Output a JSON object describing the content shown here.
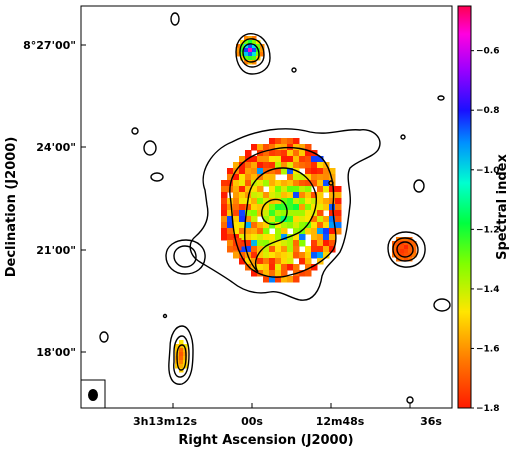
{
  "chart_data": {
    "type": "heatmap",
    "title": "",
    "xlabel": "Right Ascension (J2000)",
    "ylabel": "Declination (J2000)",
    "colorbar_label": "Spectral index",
    "x_ticks": [
      {
        "label": "3h13m12s",
        "ra_s": 12
      },
      {
        "label": "00s",
        "ra_s": 0
      },
      {
        "label": "12m48s",
        "ra_s": -12
      },
      {
        "label": "36s",
        "ra_s": -24
      }
    ],
    "y_ticks": [
      {
        "label": "8°27'00\"",
        "dec_arcmin": 27
      },
      {
        "label": "24'00\"",
        "dec_arcmin": 24
      },
      {
        "label": "21'00\"",
        "dec_arcmin": 21
      },
      {
        "label": "18'00\"",
        "dec_arcmin": 18
      }
    ],
    "colorbar": {
      "min": -1.8,
      "max": -0.45,
      "ticks": [
        -0.6,
        -0.8,
        -1.0,
        -1.2,
        -1.4,
        -1.6,
        -1.8
      ],
      "colormap": "gist_rainbow_r"
    },
    "grid": false,
    "beam_shown": true
  }
}
